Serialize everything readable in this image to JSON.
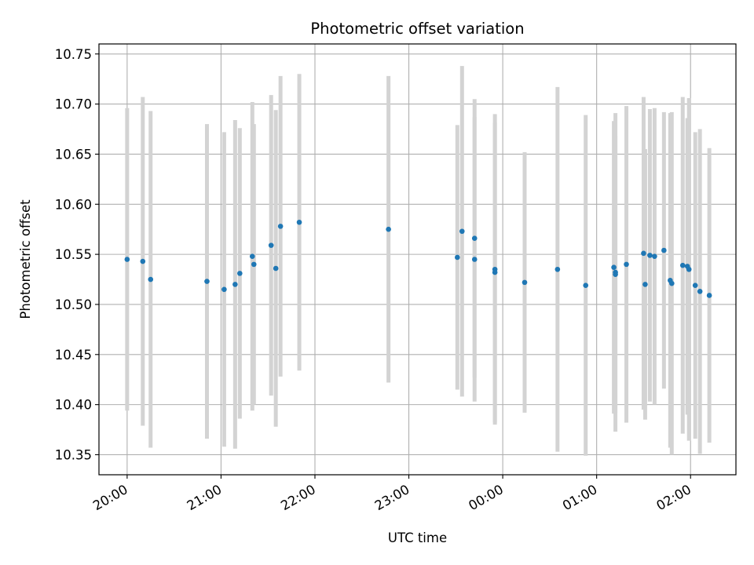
{
  "chart_data": {
    "type": "scatter",
    "title": "Photometric offset variation",
    "xlabel": "UTC time",
    "ylabel": "Photometric offset",
    "x_unit": "UTC time (HH:MM)",
    "xlim": [
      "19:42",
      "02:29"
    ],
    "ylim": [
      10.33,
      10.76
    ],
    "x_ticks": [
      "20:00",
      "21:00",
      "22:00",
      "23:00",
      "00:00",
      "01:00",
      "02:00"
    ],
    "y_ticks": [
      "10.35",
      "10.40",
      "10.45",
      "10.50",
      "10.55",
      "10.60",
      "10.65",
      "10.70",
      "10.75"
    ],
    "grid": true,
    "colors": {
      "point": "#1f77b4",
      "errorbar": "#d3d3d3",
      "grid": "#b0b0b0"
    },
    "series": [
      {
        "points": [
          {
            "x": "20:00",
            "y": 10.545,
            "err": 0.151
          },
          {
            "x": "20:10",
            "y": 10.543,
            "err": 0.164
          },
          {
            "x": "20:15",
            "y": 10.525,
            "err": 0.168
          },
          {
            "x": "20:51",
            "y": 10.523,
            "err": 0.157
          },
          {
            "x": "21:02",
            "y": 10.515,
            "err": 0.157
          },
          {
            "x": "21:09",
            "y": 10.52,
            "err": 0.164
          },
          {
            "x": "21:12",
            "y": 10.531,
            "err": 0.145
          },
          {
            "x": "21:20",
            "y": 10.548,
            "err": 0.154
          },
          {
            "x": "21:21",
            "y": 10.54,
            "err": 0.14
          },
          {
            "x": "21:32",
            "y": 10.559,
            "err": 0.15
          },
          {
            "x": "21:35",
            "y": 10.536,
            "err": 0.158
          },
          {
            "x": "21:38",
            "y": 10.578,
            "err": 0.15
          },
          {
            "x": "21:50",
            "y": 10.582,
            "err": 0.148
          },
          {
            "x": "22:47",
            "y": 10.575,
            "err": 0.153
          },
          {
            "x": "23:31",
            "y": 10.547,
            "err": 0.132
          },
          {
            "x": "23:34",
            "y": 10.573,
            "err": 0.165
          },
          {
            "x": "23:42",
            "y": 10.545,
            "err": 0.142
          },
          {
            "x": "23:42",
            "y": 10.566,
            "err": 0.139
          },
          {
            "x": "23:55",
            "y": 10.535,
            "err": 0.155
          },
          {
            "x": "23:55",
            "y": 10.532,
            "err": 0.15
          },
          {
            "x": "00:14",
            "y": 10.522,
            "err": 0.13
          },
          {
            "x": "00:35",
            "y": 10.535,
            "err": 0.182
          },
          {
            "x": "00:53",
            "y": 10.519,
            "err": 0.17
          },
          {
            "x": "01:11",
            "y": 10.537,
            "err": 0.146
          },
          {
            "x": "01:12",
            "y": 10.532,
            "err": 0.159
          },
          {
            "x": "01:12",
            "y": 10.53,
            "err": 0.138
          },
          {
            "x": "01:19",
            "y": 10.54,
            "err": 0.158
          },
          {
            "x": "01:30",
            "y": 10.551,
            "err": 0.156
          },
          {
            "x": "01:31",
            "y": 10.52,
            "err": 0.135
          },
          {
            "x": "01:34",
            "y": 10.549,
            "err": 0.146
          },
          {
            "x": "01:37",
            "y": 10.548,
            "err": 0.148
          },
          {
            "x": "01:43",
            "y": 10.554,
            "err": 0.138
          },
          {
            "x": "01:47",
            "y": 10.524,
            "err": 0.167
          },
          {
            "x": "01:48",
            "y": 10.521,
            "err": 0.171
          },
          {
            "x": "01:55",
            "y": 10.539,
            "err": 0.168
          },
          {
            "x": "01:58",
            "y": 10.538,
            "err": 0.148
          },
          {
            "x": "01:59",
            "y": 10.535,
            "err": 0.171
          },
          {
            "x": "02:03",
            "y": 10.519,
            "err": 0.153
          },
          {
            "x": "02:06",
            "y": 10.513,
            "err": 0.162
          },
          {
            "x": "02:12",
            "y": 10.509,
            "err": 0.147
          }
        ]
      }
    ]
  }
}
